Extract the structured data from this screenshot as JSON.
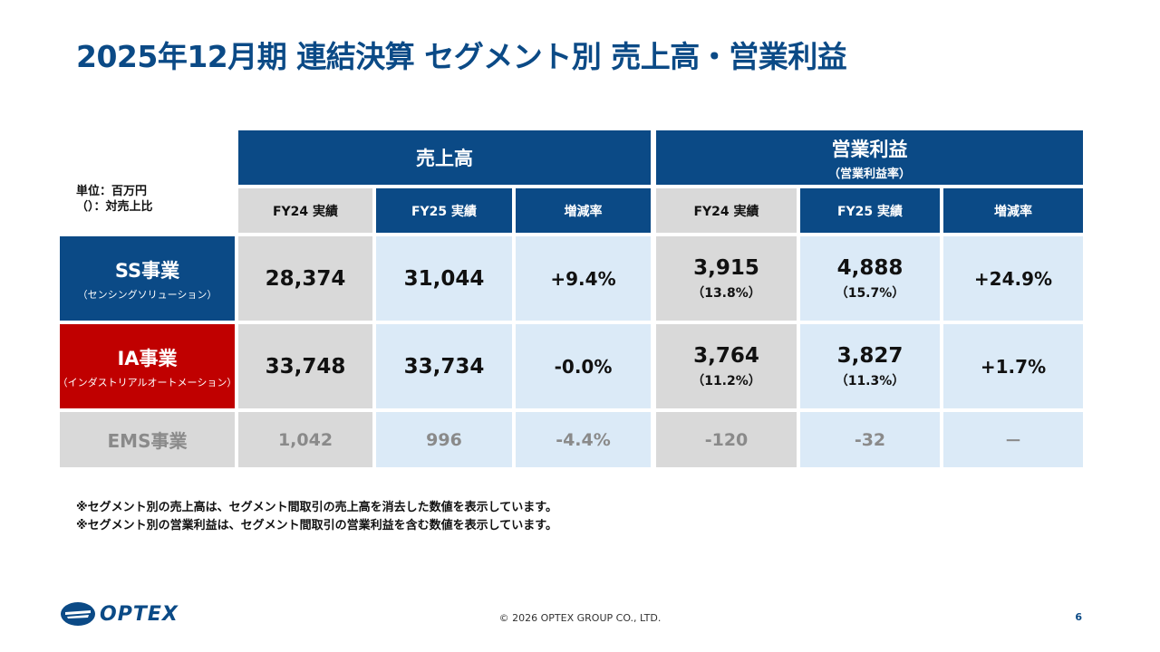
{
  "title": "2025年12月期 連結決算 セグメント別 売上高・営業利益",
  "unit": {
    "line1": "単位：百万円",
    "line2": "（）：対売上比"
  },
  "groups": {
    "sales": {
      "label": "売上高"
    },
    "op": {
      "label": "営業利益",
      "sublabel": "（営業利益率）"
    }
  },
  "columns": {
    "sales_fy24": "FY24 実績",
    "sales_fy25": "FY25 実績",
    "sales_rate": "増減率",
    "op_fy24": "FY24 実績",
    "op_fy25": "FY25 実績",
    "op_rate": "増減率"
  },
  "rows": [
    {
      "name": "SS事業",
      "sub": "（センシングソリューション）",
      "sales_fy24": "28,374",
      "sales_fy25": "31,044",
      "sales_rate": "+9.4%",
      "op_fy24": "3,915",
      "op_fy24_pct": "（13.8%）",
      "op_fy25": "4,888",
      "op_fy25_pct": "（15.7%）",
      "op_rate": "+24.9%"
    },
    {
      "name": "IA事業",
      "sub": "（インダストリアルオートメーション）",
      "sales_fy24": "33,748",
      "sales_fy25": "33,734",
      "sales_rate": "-0.0%",
      "op_fy24": "3,764",
      "op_fy24_pct": "（11.2%）",
      "op_fy25": "3,827",
      "op_fy25_pct": "（11.3%）",
      "op_rate": "+1.7%"
    },
    {
      "name": "EMS事業",
      "sales_fy24": "1,042",
      "sales_fy25": "996",
      "sales_rate": "-4.4%",
      "op_fy24": "-120",
      "op_fy25": "-32",
      "op_rate": "－"
    }
  ],
  "notes": [
    "※セグメント別の売上高は、セグメント間取引の売上高を消去した数値を表示しています。",
    "※セグメント別の営業利益は、セグメント間取引の営業利益を含む数値を表示しています。"
  ],
  "footer": {
    "logo": "OPTEX",
    "copyright": "© 2026 OPTEX GROUP CO., LTD.",
    "page": "6"
  },
  "colors": {
    "navy": "#0b4a86",
    "red": "#c00000",
    "gray": "#d9d9d9",
    "light_blue": "#dbeaf7"
  }
}
